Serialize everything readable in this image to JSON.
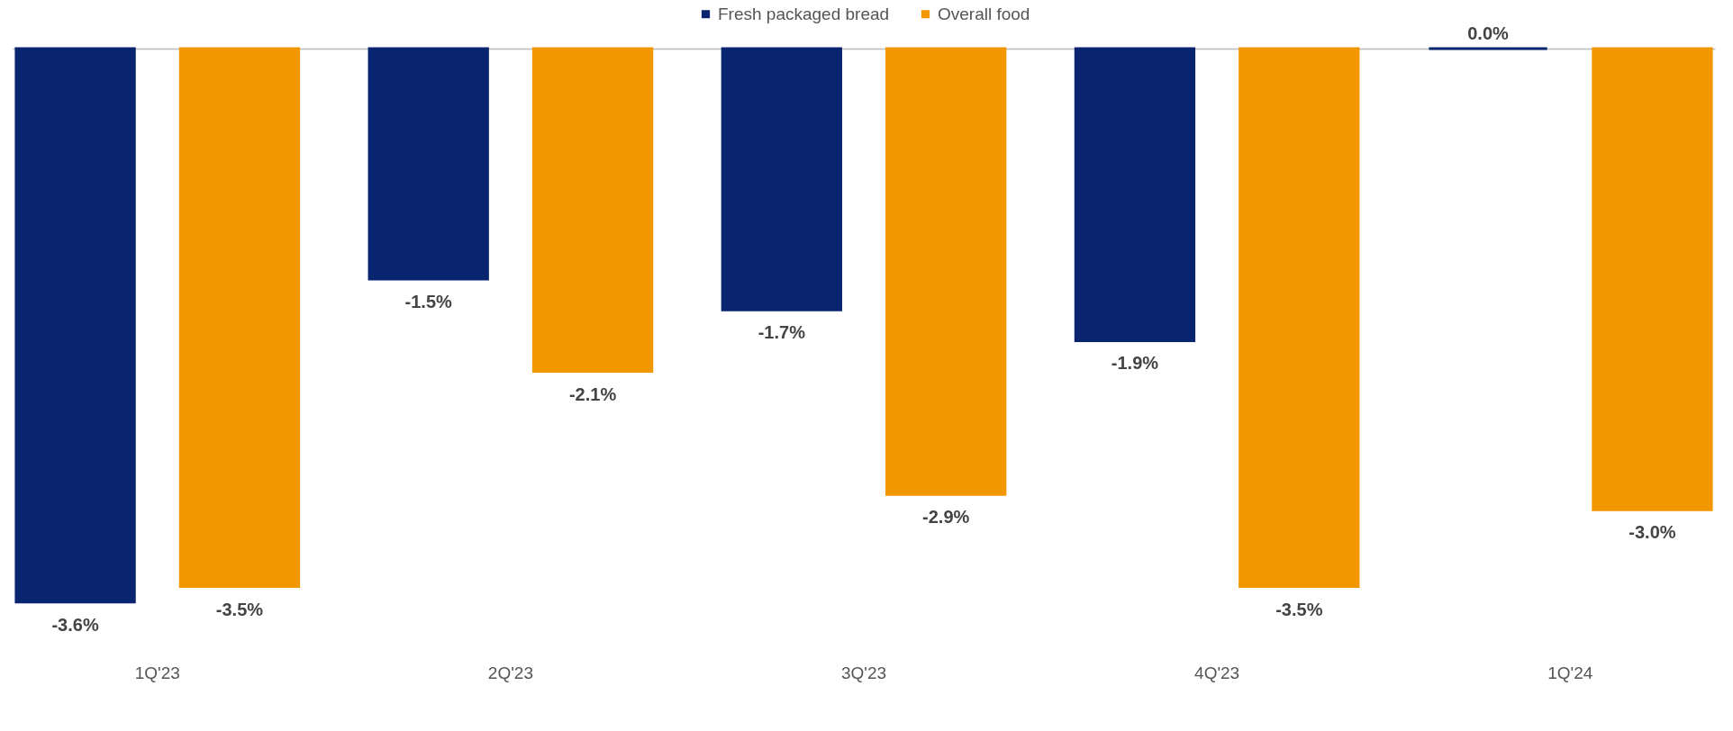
{
  "chart_data": {
    "type": "bar",
    "categories": [
      "1Q'23",
      "2Q'23",
      "3Q'23",
      "4Q'23",
      "1Q'24"
    ],
    "legend": "top",
    "series": [
      {
        "name": "Fresh packaged bread",
        "color": "#0a2570",
        "values": [
          -3.6,
          -1.5,
          -1.7,
          -1.9,
          0.0
        ],
        "value_labels": [
          "-3.6%",
          "-1.5%",
          "-1.7%",
          "-1.9%",
          "0.0%"
        ]
      },
      {
        "name": "Overall food",
        "color": "#f39700",
        "values": [
          -3.5,
          -2.1,
          -2.9,
          -3.5,
          -3.0
        ],
        "value_labels": [
          "-3.5%",
          "-2.1%",
          "-2.9%",
          "-3.5%",
          "-3.0%"
        ]
      }
    ]
  }
}
